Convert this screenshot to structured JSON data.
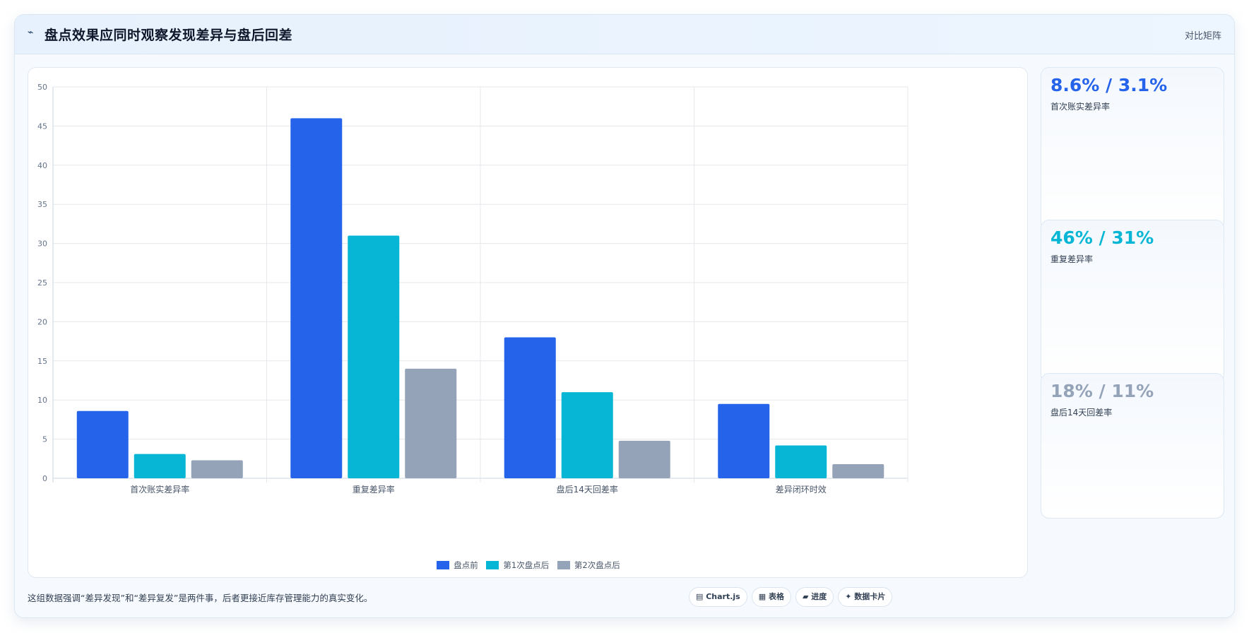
{
  "header": {
    "icon": "pulse-icon",
    "title": "盘点效果应同时观察发现差异与盘后回差",
    "tag": "对比矩阵"
  },
  "colors": {
    "series_1": "#2563eb",
    "series_2": "#06b6d4",
    "series_3": "#94a3b8",
    "kpi_1": "#2563eb",
    "kpi_2": "#06b6d4",
    "kpi_3": "#94a3b8"
  },
  "chart_data": {
    "type": "bar",
    "categories": [
      "首次账实差异率",
      "重复差异率",
      "盘后14天回差率",
      "差异闭环时效"
    ],
    "series": [
      {
        "name": "盘点前",
        "values": [
          8.6,
          46,
          18,
          9.5
        ]
      },
      {
        "name": "第1次盘点后",
        "values": [
          3.1,
          31,
          11,
          4.2
        ]
      },
      {
        "name": "第2次盘点后",
        "values": [
          2.3,
          14,
          4.8,
          1.8
        ]
      }
    ],
    "ylim": [
      0,
      50
    ],
    "yticks": [
      0,
      5,
      10,
      15,
      20,
      25,
      30,
      35,
      40,
      45,
      50
    ],
    "grid": true,
    "legend": "bottom"
  },
  "kpis": [
    {
      "value": "8.6% / 3.1%",
      "label": "首次账实差异率"
    },
    {
      "value": "46% / 31%",
      "label": "重复差异率"
    },
    {
      "value": "18% / 11%",
      "label": "盘后14天回差率"
    }
  ],
  "footer": {
    "note": "这组数据强调“差异发现”和“差异复发”是两件事，后者更接近库存管理能力的真实变化。",
    "chips": [
      "▤ Chart.js",
      "▦ 表格",
      "▰ 进度",
      "✦ 数据卡片"
    ]
  }
}
